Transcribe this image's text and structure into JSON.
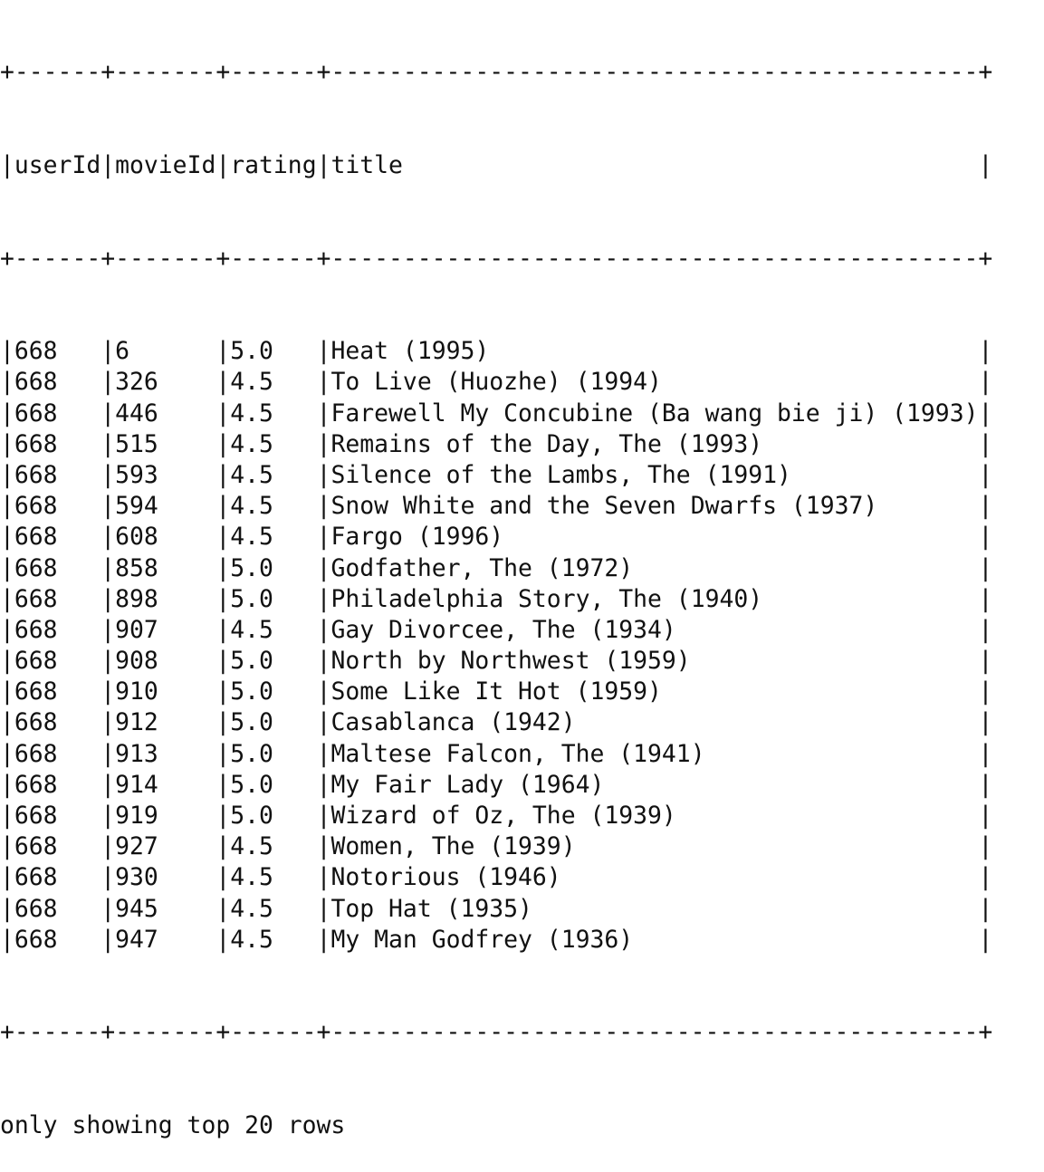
{
  "table": {
    "columns": [
      "userId",
      "movieId",
      "rating",
      "title"
    ],
    "rows": [
      [
        "668",
        "6",
        "5.0",
        "Heat (1995)"
      ],
      [
        "668",
        "326",
        "4.5",
        "To Live (Huozhe) (1994)"
      ],
      [
        "668",
        "446",
        "4.5",
        "Farewell My Concubine (Ba wang bie ji) (1993)"
      ],
      [
        "668",
        "515",
        "4.5",
        "Remains of the Day, The (1993)"
      ],
      [
        "668",
        "593",
        "4.5",
        "Silence of the Lambs, The (1991)"
      ],
      [
        "668",
        "594",
        "4.5",
        "Snow White and the Seven Dwarfs (1937)"
      ],
      [
        "668",
        "608",
        "4.5",
        "Fargo (1996)"
      ],
      [
        "668",
        "858",
        "5.0",
        "Godfather, The (1972)"
      ],
      [
        "668",
        "898",
        "5.0",
        "Philadelphia Story, The (1940)"
      ],
      [
        "668",
        "907",
        "4.5",
        "Gay Divorcee, The (1934)"
      ],
      [
        "668",
        "908",
        "5.0",
        "North by Northwest (1959)"
      ],
      [
        "668",
        "910",
        "5.0",
        "Some Like It Hot (1959)"
      ],
      [
        "668",
        "912",
        "5.0",
        "Casablanca (1942)"
      ],
      [
        "668",
        "913",
        "5.0",
        "Maltese Falcon, The (1941)"
      ],
      [
        "668",
        "914",
        "5.0",
        "My Fair Lady (1964)"
      ],
      [
        "668",
        "919",
        "5.0",
        "Wizard of Oz, The (1939)"
      ],
      [
        "668",
        "927",
        "4.5",
        "Women, The (1939)"
      ],
      [
        "668",
        "930",
        "4.5",
        "Notorious (1946)"
      ],
      [
        "668",
        "945",
        "4.5",
        "Top Hat (1935)"
      ],
      [
        "668",
        "947",
        "4.5",
        "My Man Godfrey (1936)"
      ]
    ]
  },
  "footer": {
    "message": "only showing top 20 rows"
  }
}
